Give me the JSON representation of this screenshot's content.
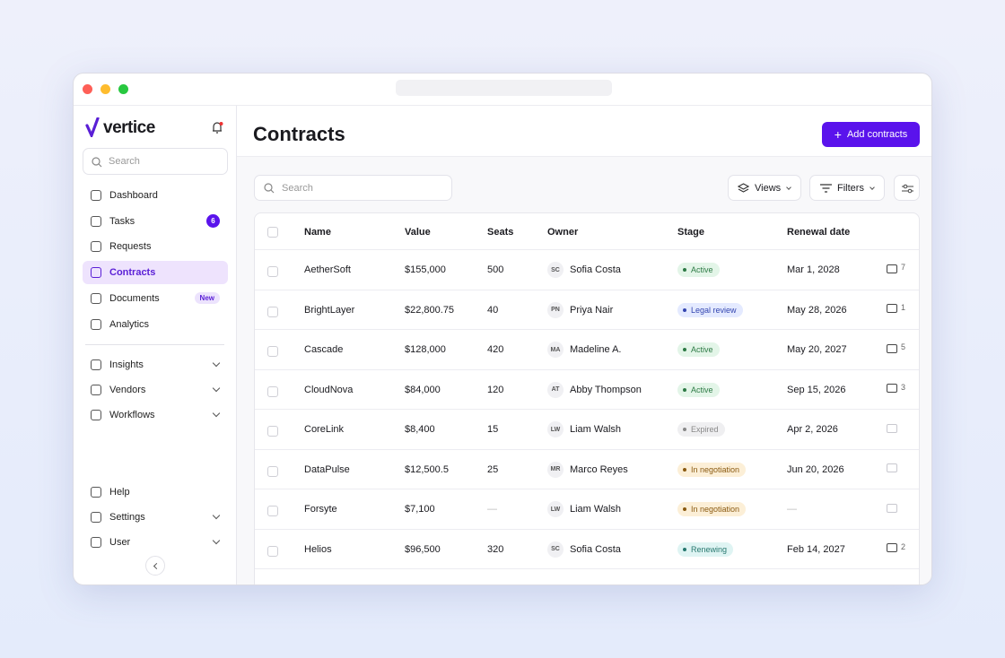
{
  "window": {
    "logo": "vertice"
  },
  "sidebar": {
    "search_placeholder": "Search",
    "nav": [
      {
        "label": "Dashboard"
      },
      {
        "label": "Tasks",
        "badge": 6
      },
      {
        "label": "Requests"
      },
      {
        "label": "Contracts",
        "active": true
      },
      {
        "label": "Documents",
        "badge": "New"
      },
      {
        "label": "Analytics"
      }
    ],
    "groups": [
      {
        "label": "Insights",
        "expandable": true
      },
      {
        "label": "Vendors",
        "expandable": true
      },
      {
        "label": "Workflows",
        "expandable": true
      }
    ],
    "bottom": [
      {
        "label": "Help"
      },
      {
        "label": "Settings",
        "expandable": true
      },
      {
        "label": "User",
        "expandable": true
      }
    ]
  },
  "header": {
    "title": "Contracts",
    "button": "Add contracts"
  },
  "toolbar": {
    "search_placeholder": "Search",
    "views": "Views",
    "filters": "Filters"
  },
  "table": {
    "columns": [
      "Name",
      "Value",
      "Seats",
      "Owner",
      "Stage",
      "Renewal date"
    ],
    "rows": [
      {
        "name": "AetherSoft",
        "value": "$155,000",
        "seats": "500",
        "initials": "SC",
        "owner": "Sofia Costa",
        "stage": "Active",
        "stage_tone": "green",
        "renewal": "Mar 1, 2028",
        "comments": 7
      },
      {
        "name": "BrightLayer",
        "value": "$22,800.75",
        "seats": "40",
        "initials": "PN",
        "owner": "Priya Nair",
        "stage": "Legal review",
        "stage_tone": "blue",
        "renewal": "May 28, 2026",
        "comments": 1
      },
      {
        "name": "Cascade",
        "value": "$128,000",
        "seats": "420",
        "initials": "MA",
        "owner": "Madeline A.",
        "stage": "Active",
        "stage_tone": "green",
        "renewal": "May 20, 2027",
        "comments": 5
      },
      {
        "name": "CloudNova",
        "value": "$84,000",
        "seats": "120",
        "initials": "AT",
        "owner": "Abby Thompson",
        "stage": "Active",
        "stage_tone": "green",
        "renewal": "Sep 15, 2026",
        "comments": 3
      },
      {
        "name": "CoreLink",
        "value": "$8,400",
        "seats": "15",
        "initials": "LW",
        "owner": "Liam Walsh",
        "stage": "Expired",
        "stage_tone": "gray",
        "renewal": "Apr 2, 2026"
      },
      {
        "name": "DataPulse",
        "value": "$12,500.5",
        "seats": "25",
        "initials": "MR",
        "owner": "Marco Reyes",
        "stage": "In negotiation",
        "stage_tone": "amber",
        "renewal": "Jun 20, 2026"
      },
      {
        "name": "Forsyte",
        "value": "$7,100",
        "seats": "—",
        "initials": "LW",
        "owner": "Liam Walsh",
        "stage": "In negotiation",
        "stage_tone": "amber",
        "renewal": "—"
      },
      {
        "name": "Helios",
        "value": "$96,500",
        "seats": "320",
        "initials": "SC",
        "owner": "Sofia Costa",
        "stage": "Renewing",
        "stage_tone": "teal",
        "renewal": "Feb 14, 2027",
        "comments": 2
      }
    ]
  }
}
